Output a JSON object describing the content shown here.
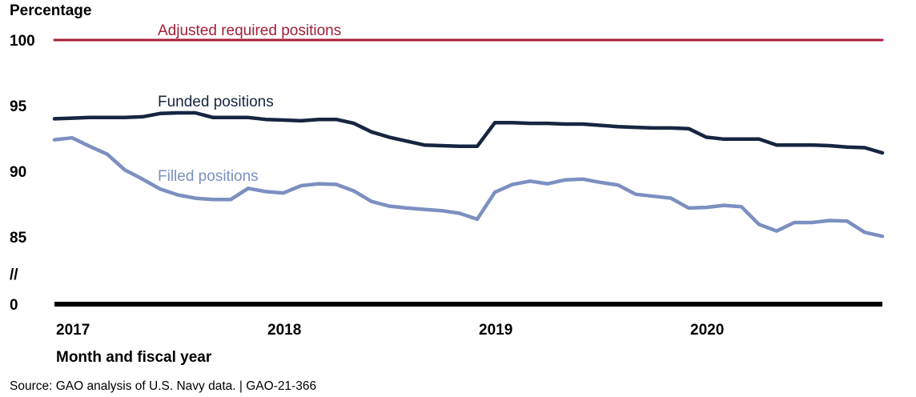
{
  "chart_data": {
    "type": "line",
    "ylabel": "Percentage",
    "xlabel": "Month and fiscal year",
    "y_ticks": [
      "100",
      "95",
      "90",
      "85",
      "0"
    ],
    "axis_break_label": "//",
    "x_ticks": [
      "2017",
      "2018",
      "2019",
      "2020"
    ],
    "x_tick_positions": [
      0,
      12,
      24,
      36
    ],
    "series": [
      {
        "name": "Adjusted required positions",
        "color": "#a61e37",
        "values": [
          100,
          100,
          100,
          100,
          100,
          100,
          100,
          100,
          100,
          100,
          100,
          100,
          100,
          100,
          100,
          100,
          100,
          100,
          100,
          100,
          100,
          100,
          100,
          100,
          100,
          100,
          100,
          100,
          100,
          100,
          100,
          100,
          100,
          100,
          100,
          100,
          100,
          100,
          100,
          100,
          100,
          100,
          100,
          100,
          100,
          100,
          100,
          100
        ]
      },
      {
        "name": "Funded positions",
        "color": "#172540",
        "values": [
          94.0,
          94.05,
          94.1,
          94.1,
          94.1,
          94.15,
          94.4,
          94.45,
          94.45,
          94.1,
          94.1,
          94.1,
          93.95,
          93.9,
          93.85,
          93.95,
          93.95,
          93.65,
          93.0,
          92.6,
          92.3,
          92.0,
          91.95,
          91.9,
          91.9,
          93.7,
          93.7,
          93.65,
          93.65,
          93.6,
          93.6,
          93.5,
          93.4,
          93.35,
          93.3,
          93.3,
          93.25,
          92.6,
          92.45,
          92.45,
          92.45,
          92.0,
          92.0,
          92.0,
          91.95,
          91.85,
          91.8,
          91.4
        ]
      },
      {
        "name": "Filled positions",
        "color": "#7c8fc0",
        "values": [
          92.4,
          92.55,
          91.9,
          91.3,
          90.1,
          89.4,
          88.65,
          88.2,
          87.95,
          87.85,
          87.85,
          88.7,
          88.45,
          88.35,
          88.9,
          89.05,
          89.0,
          88.5,
          87.7,
          87.35,
          87.2,
          87.1,
          87.0,
          86.8,
          86.35,
          88.4,
          89.0,
          89.25,
          89.05,
          89.35,
          89.4,
          89.15,
          88.95,
          88.25,
          88.1,
          87.95,
          87.2,
          87.25,
          87.4,
          87.3,
          85.95,
          85.45,
          86.1,
          86.1,
          86.25,
          86.2,
          85.35,
          85.05
        ]
      }
    ],
    "series_labels": [
      "Adjusted required positions",
      "Funded positions",
      "Filled positions"
    ]
  },
  "source_text": "Source: GAO analysis of U.S. Navy data.  |  GAO-21-366"
}
